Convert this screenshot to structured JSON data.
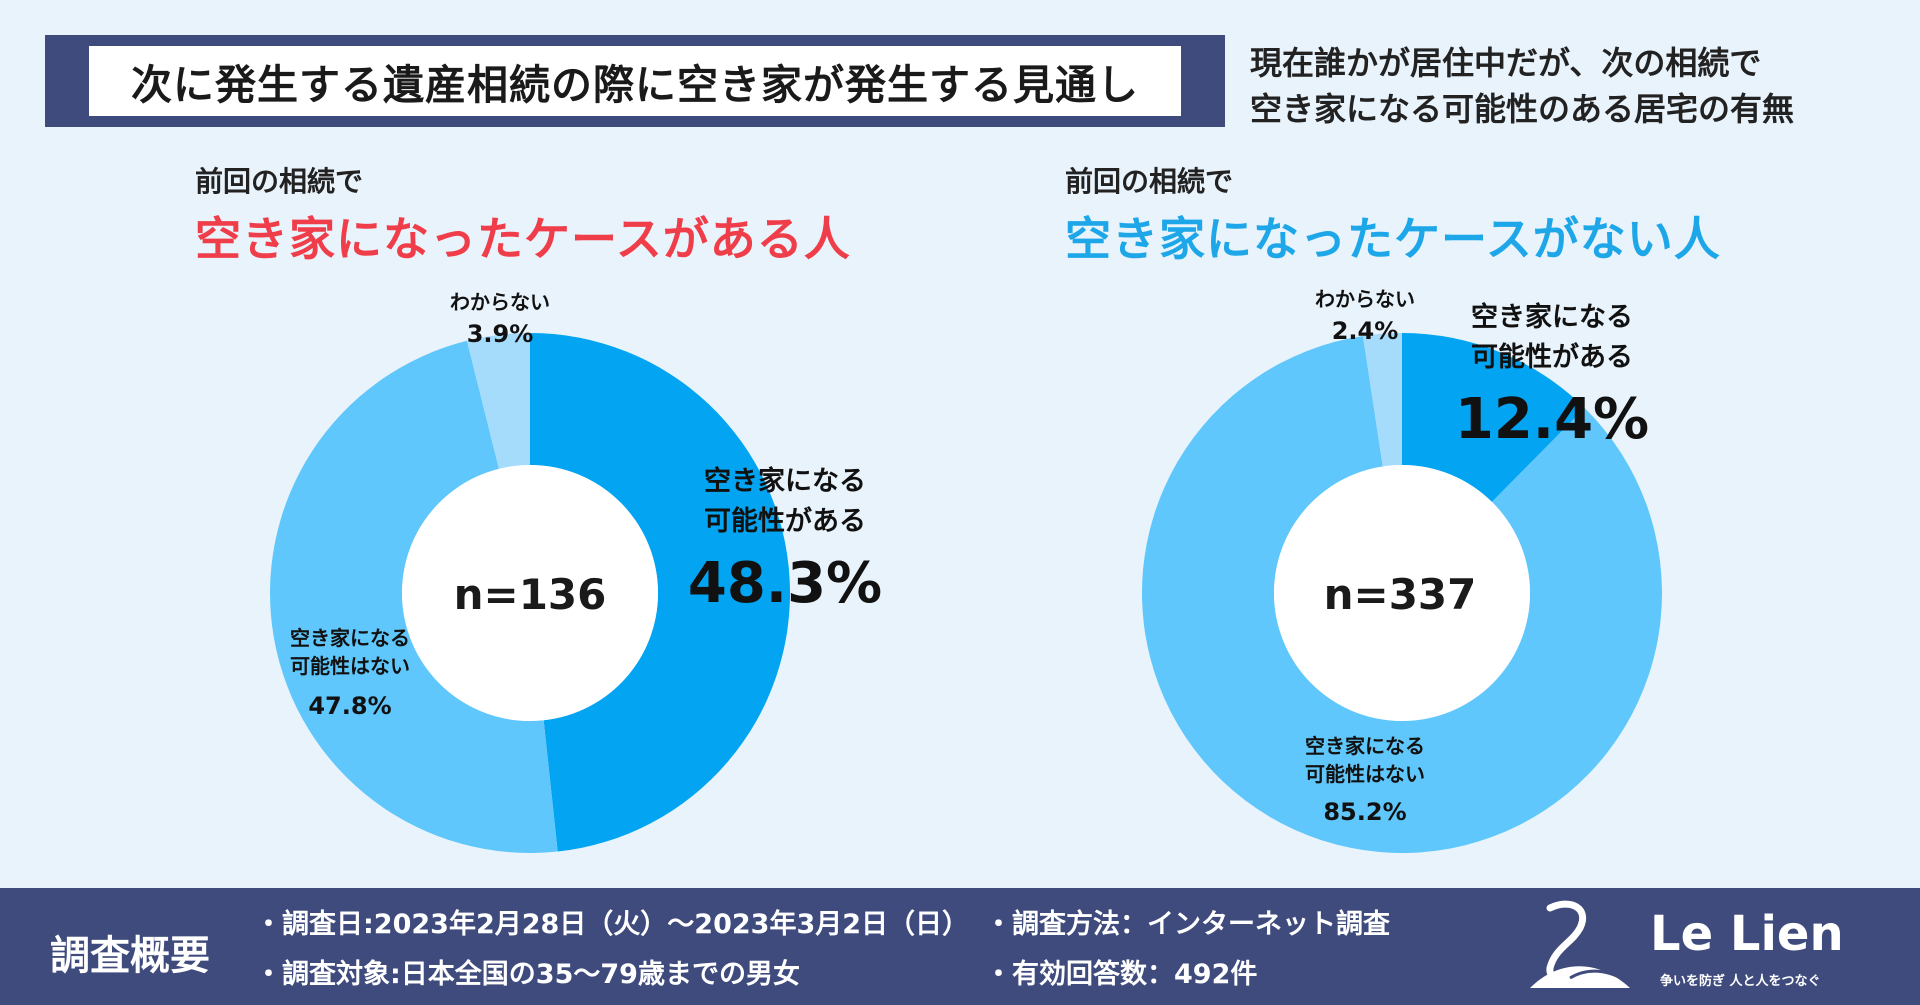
{
  "title": "次に発生する遺産相続の際に空き家が発生する見通し",
  "subtitle_lines": [
    "現在誰かが居住中だが、次の相続で",
    "空き家になる可能性のある居宅の有無"
  ],
  "left": {
    "caption": "前回の相続で",
    "heading": "空き家になったケースがある人",
    "n_label": "n=136",
    "labels": {
      "yes_line1": "空き家になる",
      "yes_line2": "可能性がある",
      "yes_pct": "48.3%",
      "no_line1": "空き家になる",
      "no_line2": "可能性はない",
      "no_pct": "47.8%",
      "unknown_label": "わからない",
      "unknown_pct": "3.9%"
    }
  },
  "right": {
    "caption": "前回の相続で",
    "heading": "空き家になったケースがない人",
    "n_label": "n=337",
    "labels": {
      "yes_line1": "空き家になる",
      "yes_line2": "可能性がある",
      "yes_pct": "12.4%",
      "no_line1": "空き家になる",
      "no_line2": "可能性はない",
      "no_pct": "85.2%",
      "unknown_label": "わからない",
      "unknown_pct": "2.4%"
    }
  },
  "chart_data": [
    {
      "type": "pie",
      "title": "前回の相続で空き家になったケースがある人",
      "n": 136,
      "categories": [
        "空き家になる可能性がある",
        "空き家になる可能性はない",
        "わからない"
      ],
      "values": [
        48.3,
        47.8,
        3.9
      ],
      "colors": [
        "#03a5f2",
        "#5fc7fb",
        "#a6dcfb"
      ]
    },
    {
      "type": "pie",
      "title": "前回の相続で空き家になったケースがない人",
      "n": 337,
      "categories": [
        "空き家になる可能性がある",
        "空き家になる可能性はない",
        "わからない"
      ],
      "values": [
        12.4,
        85.2,
        2.4
      ],
      "colors": [
        "#03a5f2",
        "#5fc7fb",
        "#a6dcfb"
      ]
    }
  ],
  "footer": {
    "title": "調査概要",
    "items": [
      "・調査日:2023年2月28日（火）〜2023年3月2日（日）",
      "・調査対象:日本全国の35〜79歳までの男女",
      "・調査方法：インターネット調査",
      "・有効回答数：492件"
    ]
  },
  "logo": {
    "name": "Le Lien",
    "tagline": "争いを防ぎ 人と人をつなぐ"
  },
  "colors": {
    "navy": "#3e4b7c",
    "background": "#e9f3fb",
    "red": "#ef3e4a",
    "blue": "#1ea7e8"
  }
}
